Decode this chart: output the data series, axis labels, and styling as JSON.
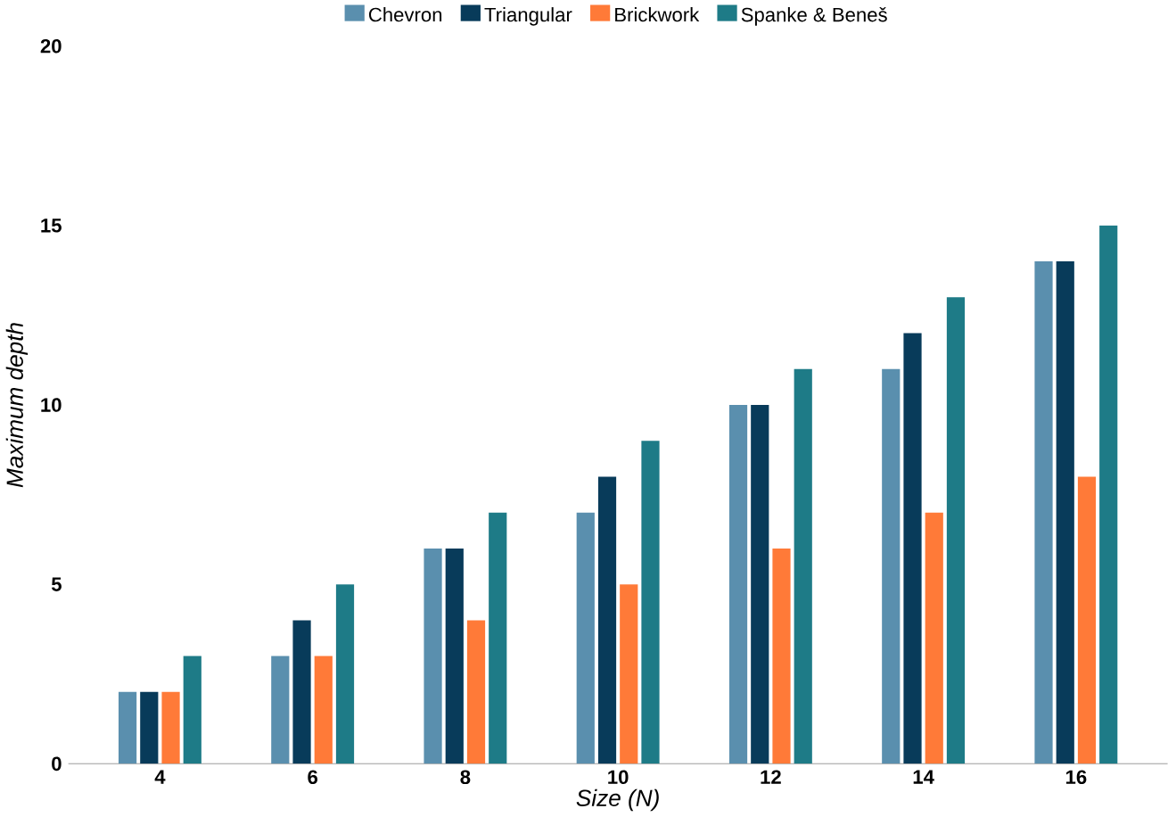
{
  "chart_data": {
    "type": "bar",
    "xlabel": "Size (N)",
    "ylabel": "Maximum depth",
    "categories": [
      "4",
      "6",
      "8",
      "10",
      "12",
      "14",
      "16"
    ],
    "series": [
      {
        "name": "Chevron",
        "color": "#5a8fae",
        "values": [
          2,
          3,
          6,
          7,
          10,
          11,
          14
        ]
      },
      {
        "name": "Triangular",
        "color": "#083b5a",
        "values": [
          2,
          4,
          6,
          8,
          10,
          12,
          14
        ]
      },
      {
        "name": "Brickwork",
        "color": "#ff7a38",
        "values": [
          2,
          3,
          4,
          5,
          6,
          7,
          8
        ]
      },
      {
        "name": "Spanke & Beneš",
        "color": "#1e7b87",
        "values": [
          3,
          5,
          7,
          9,
          11,
          13,
          15
        ]
      }
    ],
    "ylim": [
      0,
      20
    ],
    "yticks": [
      0,
      5,
      10,
      15,
      20
    ],
    "legend": "top",
    "grid": false
  }
}
